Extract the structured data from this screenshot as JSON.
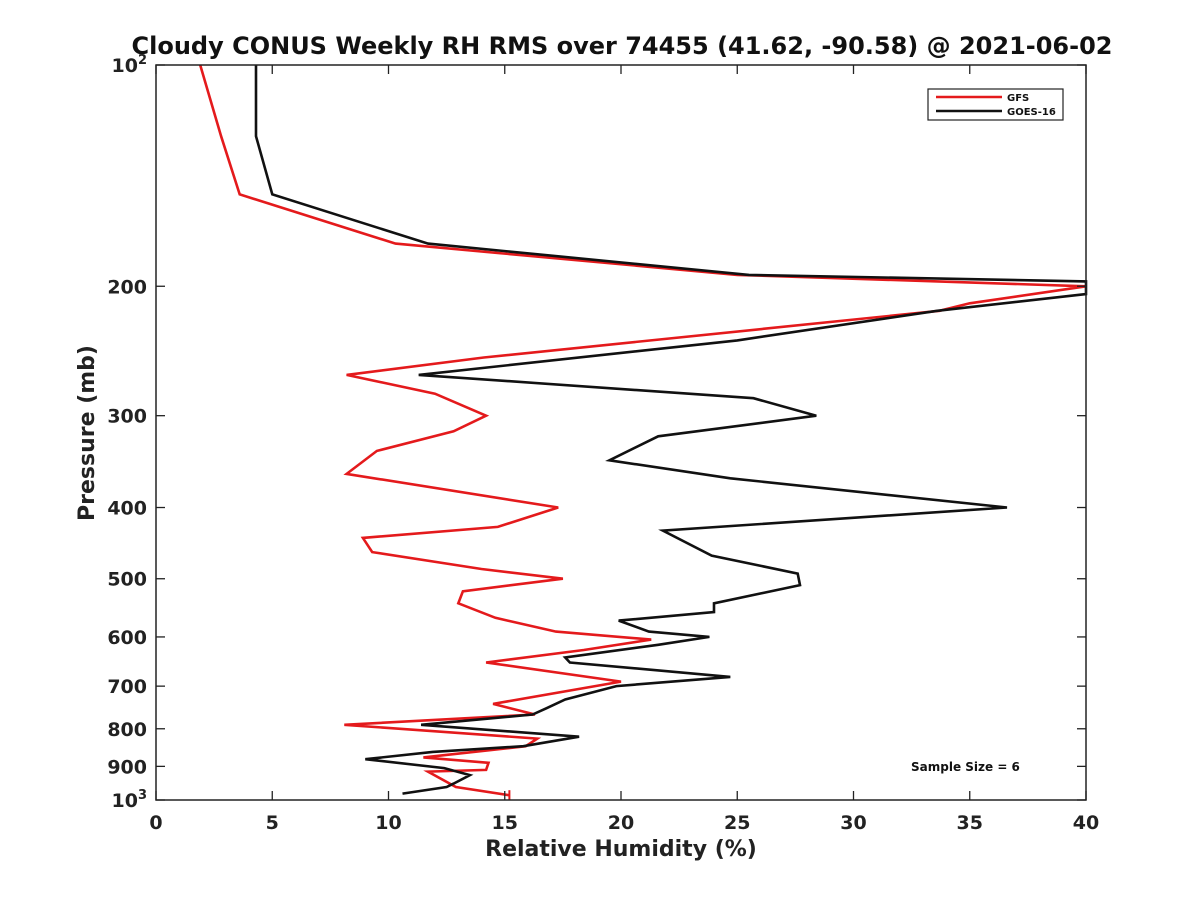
{
  "chart_data": {
    "type": "line",
    "title": "Cloudy CONUS Weekly RH RMS over 74455 (41.62, -90.58) @ 2021-06-02",
    "xlabel": "Relative Humidity (%)",
    "ylabel": "Pressure (mb)",
    "xlim": [
      0,
      40
    ],
    "ylim": [
      100,
      1000
    ],
    "y_scale": "log",
    "y_reversed": true,
    "grid": false,
    "legend_position": "top-right",
    "x_ticks": [
      0,
      5,
      10,
      15,
      20,
      25,
      30,
      35,
      40
    ],
    "x_tick_labels": [
      "0",
      "5",
      "10",
      "15",
      "20",
      "25",
      "30",
      "35",
      "40"
    ],
    "y_ticks": [
      100,
      200,
      300,
      400,
      500,
      600,
      700,
      800,
      900,
      1000
    ],
    "y_tick_labels": [
      {
        "base": "10",
        "exp": "2"
      },
      {
        "base": "200",
        "exp": ""
      },
      {
        "base": "300",
        "exp": ""
      },
      {
        "base": "400",
        "exp": ""
      },
      {
        "base": "500",
        "exp": ""
      },
      {
        "base": "600",
        "exp": ""
      },
      {
        "base": "700",
        "exp": ""
      },
      {
        "base": "800",
        "exp": ""
      },
      {
        "base": "900",
        "exp": ""
      },
      {
        "base": "10",
        "exp": "3"
      }
    ],
    "annotation": "Sample Size = 6",
    "series": [
      {
        "name": "GFS",
        "color": "#e41a1c",
        "points": [
          [
            1.9,
            100
          ],
          [
            2.8,
            125
          ],
          [
            3.6,
            150
          ],
          [
            10.3,
            175
          ],
          [
            25.0,
            193
          ],
          [
            40.0,
            200
          ],
          [
            35.0,
            211
          ],
          [
            33.7,
            216
          ],
          [
            14.1,
            250
          ],
          [
            8.2,
            264
          ],
          [
            12.0,
            280
          ],
          [
            14.2,
            300
          ],
          [
            12.8,
            315
          ],
          [
            9.5,
            335
          ],
          [
            8.2,
            360
          ],
          [
            17.3,
            400
          ],
          [
            14.7,
            425
          ],
          [
            8.9,
            440
          ],
          [
            9.3,
            460
          ],
          [
            14.0,
            485
          ],
          [
            17.5,
            500
          ],
          [
            13.2,
            520
          ],
          [
            13.0,
            540
          ],
          [
            14.6,
            565
          ],
          [
            17.2,
            590
          ],
          [
            21.3,
            605
          ],
          [
            18.4,
            625
          ],
          [
            14.2,
            650
          ],
          [
            20.0,
            690
          ],
          [
            14.5,
            740
          ],
          [
            16.3,
            765
          ],
          [
            8.1,
            790
          ],
          [
            16.4,
            825
          ],
          [
            15.9,
            845
          ],
          [
            11.5,
            875
          ],
          [
            14.3,
            890
          ],
          [
            14.2,
            910
          ],
          [
            11.7,
            915
          ],
          [
            12.9,
            960
          ],
          [
            15.2,
            985
          ]
        ]
      },
      {
        "name": "GOES-16",
        "color": "#111111",
        "points": [
          [
            4.3,
            100
          ],
          [
            4.3,
            125
          ],
          [
            5.0,
            150
          ],
          [
            11.7,
            175
          ],
          [
            25.5,
            193
          ],
          [
            40.0,
            197
          ],
          [
            40.0,
            205
          ],
          [
            33.6,
            216
          ],
          [
            25.0,
            237
          ],
          [
            11.3,
            264
          ],
          [
            25.7,
            284
          ],
          [
            28.4,
            300
          ],
          [
            21.6,
            320
          ],
          [
            19.5,
            345
          ],
          [
            24.7,
            365
          ],
          [
            36.6,
            400
          ],
          [
            21.8,
            430
          ],
          [
            23.9,
            465
          ],
          [
            27.6,
            492
          ],
          [
            27.7,
            510
          ],
          [
            24.0,
            540
          ],
          [
            24.0,
            555
          ],
          [
            19.9,
            570
          ],
          [
            21.2,
            590
          ],
          [
            23.8,
            600
          ],
          [
            21.6,
            615
          ],
          [
            17.6,
            640
          ],
          [
            17.8,
            650
          ],
          [
            24.7,
            680
          ],
          [
            19.8,
            700
          ],
          [
            17.6,
            730
          ],
          [
            16.8,
            750
          ],
          [
            16.2,
            765
          ],
          [
            11.4,
            790
          ],
          [
            18.2,
            820
          ],
          [
            15.8,
            845
          ],
          [
            11.9,
            860
          ],
          [
            9.0,
            880
          ],
          [
            12.4,
            905
          ],
          [
            13.5,
            925
          ],
          [
            12.8,
            950
          ],
          [
            12.5,
            960
          ],
          [
            10.6,
            980
          ]
        ]
      }
    ]
  }
}
